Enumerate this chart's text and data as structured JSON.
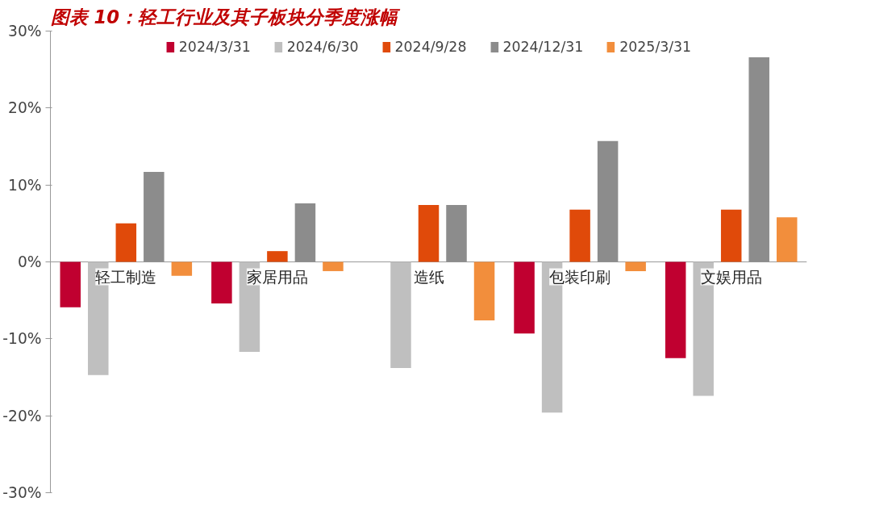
{
  "chart_data": {
    "type": "bar",
    "title": "图表 10：轻工行业及其子板块分季度涨幅",
    "categories": [
      "轻工制造",
      "家居用品",
      "造纸",
      "包装印刷",
      "文娱用品"
    ],
    "series": [
      {
        "name": "2024/3/31",
        "color": "#c00030",
        "values": [
          -5.9,
          -5.4,
          null,
          -9.3,
          -12.5
        ]
      },
      {
        "name": "2024/6/30",
        "color": "#bfbfbf",
        "values": [
          -14.7,
          -11.7,
          -13.8,
          -19.6,
          -17.4
        ]
      },
      {
        "name": "2024/9/28",
        "color": "#e04a0a",
        "values": [
          5.0,
          1.4,
          7.4,
          6.8,
          6.8
        ]
      },
      {
        "name": "2024/12/31",
        "color": "#8c8c8c",
        "values": [
          11.7,
          7.6,
          7.4,
          15.7,
          26.6
        ]
      },
      {
        "name": "2025/3/31",
        "color": "#f28e3c",
        "values": [
          -1.8,
          -1.2,
          -7.6,
          -1.2,
          5.8
        ]
      }
    ],
    "ylim": [
      -30,
      30
    ],
    "yticks": [
      {
        "value": -30,
        "label": "-30%"
      },
      {
        "value": -20,
        "label": "-20%"
      },
      {
        "value": -10,
        "label": "-10%"
      },
      {
        "value": 0,
        "label": "0%"
      },
      {
        "value": 10,
        "label": "10%"
      },
      {
        "value": 20,
        "label": "20%"
      },
      {
        "value": 30,
        "label": "30%"
      }
    ],
    "grid": false,
    "legend": "top"
  }
}
